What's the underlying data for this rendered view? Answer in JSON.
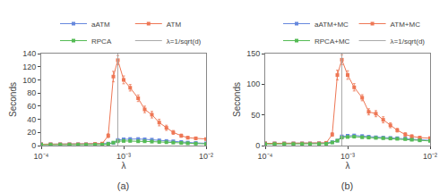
{
  "chart_data": [
    {
      "type": "line",
      "title": "(a)",
      "x_label": "λ",
      "y_label": "Seconds",
      "x": [
        0.0001,
        0.00013,
        0.00017,
        0.00022,
        0.00028,
        0.00035,
        0.00045,
        0.00055,
        0.00065,
        0.00075,
        0.00085,
        0.001,
        0.0012,
        0.0015,
        0.0018,
        0.0022,
        0.0027,
        0.0033,
        0.004,
        0.005,
        0.006,
        0.0075,
        0.01
      ],
      "series": [
        {
          "name": "aATM",
          "color": "#6688dd",
          "marker": "square",
          "values": [
            2.0,
            2.0,
            2.0,
            2.0,
            2.0,
            2.0,
            2.2,
            2.5,
            3.0,
            4.0,
            8.5,
            9.5,
            10.0,
            10.0,
            9.5,
            9.0,
            8.0,
            7.0,
            6.5,
            5.5,
            4.5,
            4.0,
            3.5
          ],
          "errors": [
            0.2,
            0.2,
            0.2,
            0.2,
            0.2,
            0.2,
            0.3,
            0.3,
            0.4,
            0.5,
            1.0,
            1.0,
            1.0,
            1.0,
            1.0,
            1.0,
            0.8,
            0.8,
            0.7,
            0.6,
            0.5,
            0.5,
            0.4
          ]
        },
        {
          "name": "ATM",
          "color": "#ee7755",
          "marker": "square",
          "values": [
            2.0,
            2.0,
            2.0,
            2.0,
            2.0,
            2.0,
            2.5,
            3.0,
            15.0,
            105.0,
            130.0,
            100.0,
            88.0,
            72.0,
            55.0,
            47.0,
            35.0,
            27.0,
            20.0,
            15.0,
            12.0,
            11.0,
            10.0
          ],
          "errors": [
            0.3,
            0.3,
            0.3,
            0.3,
            0.3,
            0.3,
            0.4,
            0.5,
            3.0,
            8.0,
            7.0,
            6.0,
            5.0,
            5.0,
            5.0,
            5.0,
            5.0,
            4.0,
            3.0,
            2.5,
            2.0,
            2.0,
            1.5
          ]
        },
        {
          "name": "RPCA",
          "color": "#55bb55",
          "marker": "square",
          "values": [
            1.2,
            1.2,
            1.2,
            1.2,
            1.2,
            1.2,
            1.3,
            1.5,
            2.5,
            4.5,
            6.5,
            7.0,
            7.0,
            6.5,
            6.5,
            6.0,
            5.5,
            5.0,
            4.5,
            4.0,
            3.5,
            3.0,
            2.5
          ],
          "errors": [
            0.1,
            0.1,
            0.1,
            0.1,
            0.1,
            0.1,
            0.1,
            0.2,
            0.3,
            0.4,
            0.5,
            0.5,
            0.5,
            0.5,
            0.5,
            0.5,
            0.5,
            0.5,
            0.4,
            0.4,
            0.4,
            0.3,
            0.3
          ]
        },
        {
          "name": "λ=1/sqrt(d)",
          "type": "vline",
          "color": "#aaaaaa",
          "x": 0.00085
        }
      ],
      "xlim": [
        0.0001,
        0.01
      ],
      "xticks": [
        {
          "value": 0.0001,
          "label": "10⁻⁴"
        },
        {
          "value": 0.001,
          "label": "10⁻³"
        },
        {
          "value": 0.01,
          "label": "10⁻²"
        }
      ],
      "ylim": [
        0,
        140
      ],
      "yticks": [
        0,
        20,
        40,
        60,
        80,
        100,
        120,
        140
      ],
      "log": "x",
      "grid": false,
      "legend": "upper right"
    },
    {
      "type": "line",
      "title": "(b)",
      "x_label": "λ",
      "y_label": "Seconds",
      "x": [
        0.0001,
        0.00013,
        0.00017,
        0.00022,
        0.00028,
        0.00035,
        0.00045,
        0.00055,
        0.00065,
        0.00075,
        0.00085,
        0.001,
        0.0012,
        0.0015,
        0.0018,
        0.0022,
        0.0027,
        0.0033,
        0.004,
        0.005,
        0.006,
        0.0075,
        0.01
      ],
      "series": [
        {
          "name": "aATM+MC",
          "color": "#6688dd",
          "marker": "square",
          "values": [
            3.5,
            3.5,
            3.5,
            3.5,
            3.5,
            3.5,
            3.8,
            4.2,
            5.5,
            8.0,
            15.0,
            16.0,
            16.5,
            15.5,
            14.5,
            13.5,
            13.0,
            12.5,
            12.0,
            11.5,
            10.5,
            9.5,
            8.5
          ],
          "errors": [
            0.3,
            0.3,
            0.3,
            0.3,
            0.3,
            0.3,
            0.4,
            0.4,
            0.6,
            0.8,
            1.5,
            1.5,
            1.5,
            1.5,
            1.2,
            1.2,
            1.0,
            1.0,
            1.0,
            1.0,
            0.8,
            0.8,
            0.7
          ]
        },
        {
          "name": "ATM+MC",
          "color": "#ee7755",
          "marker": "square",
          "values": [
            3.5,
            3.5,
            3.5,
            3.5,
            3.5,
            3.5,
            3.8,
            4.5,
            18.0,
            115.0,
            140.0,
            115.0,
            95.0,
            78.0,
            55.0,
            52.0,
            42.0,
            33.0,
            25.0,
            18.0,
            15.0,
            13.0,
            12.0
          ],
          "errors": [
            0.3,
            0.3,
            0.3,
            0.3,
            0.3,
            0.3,
            0.4,
            0.5,
            3.0,
            8.0,
            8.0,
            7.0,
            6.0,
            5.0,
            5.0,
            5.0,
            5.0,
            4.0,
            3.0,
            3.0,
            2.5,
            2.0,
            2.0
          ]
        },
        {
          "name": "RPCA+MC",
          "color": "#55bb55",
          "marker": "square",
          "values": [
            2.5,
            2.5,
            2.5,
            2.5,
            2.5,
            2.5,
            2.7,
            3.0,
            5.0,
            8.0,
            13.0,
            14.0,
            14.5,
            13.5,
            13.0,
            12.5,
            12.0,
            11.5,
            11.0,
            10.5,
            9.5,
            8.5,
            7.5
          ],
          "errors": [
            0.2,
            0.2,
            0.2,
            0.2,
            0.2,
            0.2,
            0.2,
            0.3,
            0.5,
            0.7,
            1.0,
            1.0,
            1.0,
            1.0,
            1.0,
            1.0,
            0.8,
            0.8,
            0.8,
            0.8,
            0.7,
            0.7,
            0.6
          ]
        },
        {
          "name": "λ=1/sqrt(d)",
          "type": "vline",
          "color": "#aaaaaa",
          "x": 0.00085
        }
      ],
      "xlim": [
        0.0001,
        0.01
      ],
      "xticks": [
        {
          "value": 0.0001,
          "label": "10⁻⁴"
        },
        {
          "value": 0.001,
          "label": "10⁻³"
        },
        {
          "value": 0.01,
          "label": "10⁻²"
        }
      ],
      "ylim": [
        0,
        150
      ],
      "yticks": [
        0,
        50,
        100,
        150
      ],
      "log": "x",
      "grid": false,
      "legend": "upper right"
    }
  ]
}
